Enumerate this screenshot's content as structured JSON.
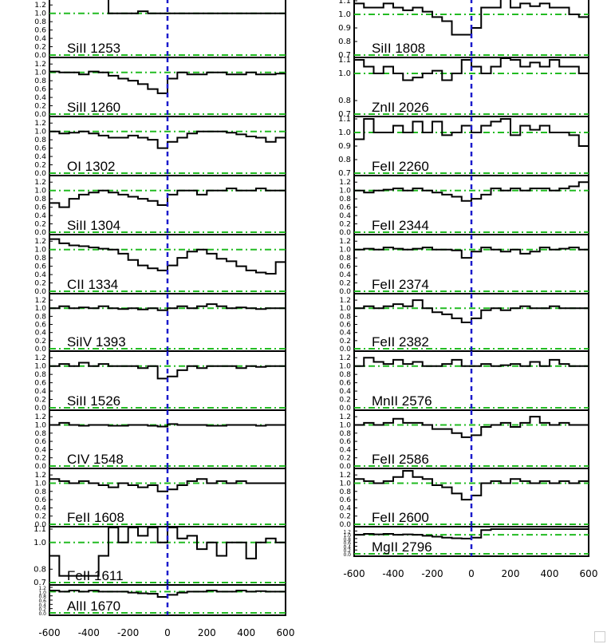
{
  "chart_data": [
    {
      "type": "line",
      "x_axis": {
        "ticks": [
          "-600",
          "-400",
          "-200",
          "0",
          "200",
          "400",
          "600"
        ],
        "range": [
          -600,
          600
        ]
      },
      "reference": {
        "velocity_zero": 0,
        "continuum_level": 1.0
      },
      "panels": [
        {
          "label": "SiII 1253",
          "ylim": [
            0.0,
            1.3
          ],
          "yticks": [
            "0.0",
            "0.2",
            "0.4",
            "0.6",
            "0.8",
            "1.0",
            "1.2"
          ],
          "flux": [
            1.4,
            1.4,
            1.4,
            1.4,
            1.4,
            1.4,
            1.0,
            1.0,
            1.0,
            1.05,
            1.0,
            1.0,
            1.0,
            1.0,
            1.0,
            1.0,
            1.0,
            1.0,
            1.0,
            1.0,
            1.0,
            1.0,
            1.0,
            1.0
          ]
        },
        {
          "label": "SiII 1260",
          "ylim": [
            0.0,
            1.3
          ],
          "yticks": [
            "0.0",
            "0.2",
            "0.4",
            "0.6",
            "0.8",
            "1.0",
            "1.2"
          ],
          "flux": [
            1.02,
            1.0,
            1.0,
            0.95,
            1.02,
            1.0,
            0.92,
            0.85,
            0.8,
            0.72,
            0.6,
            0.5,
            0.85,
            1.0,
            0.95,
            0.95,
            1.0,
            1.0,
            0.95,
            0.95,
            1.0,
            0.95,
            0.95,
            0.97
          ]
        },
        {
          "label": "OI 1302",
          "ylim": [
            0.0,
            1.3
          ],
          "yticks": [
            "0.0",
            "0.2",
            "0.4",
            "0.6",
            "0.8",
            "1.0",
            "1.2"
          ],
          "flux": [
            1.0,
            0.95,
            0.97,
            1.0,
            0.95,
            0.9,
            0.85,
            0.85,
            0.9,
            0.85,
            0.8,
            0.6,
            0.75,
            0.85,
            0.95,
            1.0,
            1.0,
            1.0,
            0.97,
            0.93,
            0.88,
            0.85,
            0.75,
            0.85
          ]
        },
        {
          "label": "SiII 1304",
          "ylim": [
            0.0,
            1.3
          ],
          "yticks": [
            "0.0",
            "0.2",
            "0.4",
            "0.6",
            "0.8",
            "1.0",
            "1.2"
          ],
          "flux": [
            0.7,
            0.6,
            0.8,
            0.9,
            0.95,
            1.0,
            0.95,
            0.9,
            0.85,
            0.8,
            0.75,
            0.65,
            0.9,
            1.0,
            1.0,
            0.9,
            1.0,
            1.0,
            1.05,
            1.0,
            1.0,
            1.05,
            1.0,
            1.0
          ]
        },
        {
          "label": "CII 1334",
          "ylim": [
            0.0,
            1.3
          ],
          "yticks": [
            "0.0",
            "0.2",
            "0.4",
            "0.6",
            "0.8",
            "1.0",
            "1.2"
          ],
          "flux": [
            1.25,
            1.15,
            1.1,
            1.08,
            1.05,
            1.02,
            1.0,
            0.9,
            0.75,
            0.62,
            0.55,
            0.5,
            0.62,
            0.8,
            0.95,
            1.0,
            0.9,
            0.78,
            0.72,
            0.6,
            0.5,
            0.45,
            0.42,
            0.7
          ]
        },
        {
          "label": "SiIV 1393",
          "ylim": [
            0.0,
            1.3
          ],
          "yticks": [
            "0.0",
            "0.2",
            "0.4",
            "0.6",
            "0.8",
            "1.0",
            "1.2"
          ],
          "flux": [
            1.0,
            1.05,
            1.0,
            1.02,
            1.0,
            1.05,
            1.0,
            0.98,
            1.0,
            0.97,
            1.0,
            0.95,
            1.0,
            1.05,
            1.0,
            1.05,
            1.1,
            1.05,
            1.0,
            1.02,
            1.0,
            0.98,
            1.0,
            1.0
          ]
        },
        {
          "label": "SiII 1526",
          "ylim": [
            0.0,
            1.3
          ],
          "yticks": [
            "0.0",
            "0.2",
            "0.4",
            "0.6",
            "0.8",
            "1.0",
            "1.2"
          ],
          "flux": [
            1.0,
            1.05,
            1.0,
            1.08,
            1.0,
            1.05,
            1.0,
            1.0,
            1.0,
            0.95,
            1.0,
            0.7,
            0.75,
            0.9,
            1.0,
            0.95,
            1.0,
            1.0,
            1.0,
            0.95,
            1.0,
            0.98,
            1.0,
            1.0
          ]
        },
        {
          "label": "CIV 1548",
          "ylim": [
            0.0,
            1.3
          ],
          "yticks": [
            "0.0",
            "0.2",
            "0.4",
            "0.6",
            "0.8",
            "1.0",
            "1.2"
          ],
          "flux": [
            1.0,
            1.05,
            1.0,
            0.98,
            1.0,
            1.0,
            0.98,
            0.98,
            1.0,
            1.0,
            0.98,
            0.96,
            1.02,
            1.0,
            1.0,
            1.0,
            0.98,
            0.98,
            1.0,
            1.0,
            1.0,
            0.98,
            1.0,
            1.0
          ]
        },
        {
          "label": "FeII 1608",
          "ylim": [
            0.0,
            1.3
          ],
          "yticks": [
            "0.0",
            "0.2",
            "0.4",
            "0.6",
            "0.8",
            "1.0",
            "1.2"
          ],
          "flux": [
            1.1,
            1.05,
            1.0,
            1.05,
            1.0,
            0.95,
            0.9,
            1.0,
            0.95,
            0.9,
            0.95,
            0.8,
            0.85,
            0.95,
            1.05,
            1.1,
            1.0,
            1.05,
            1.0,
            1.05,
            1.0,
            1.0,
            1.0,
            1.0
          ]
        },
        {
          "label": "FeII 1611",
          "ylim": [
            0.7,
            1.1
          ],
          "yticks": [
            "0.7",
            "0.8",
            "1.0",
            "1.1"
          ],
          "flux": [
            0.9,
            0.75,
            0.75,
            0.75,
            0.75,
            0.9,
            1.14,
            1.0,
            1.14,
            1.05,
            1.14,
            1.0,
            1.14,
            1.03,
            1.05,
            0.95,
            1.0,
            0.9,
            1.0,
            1.0,
            0.88,
            1.0,
            1.03,
            1.0
          ]
        },
        {
          "label": "AlII 1670",
          "ylim": [
            0.0,
            1.2
          ],
          "yticks": [
            "0.0",
            "0.2",
            "0.4",
            "0.6",
            "0.8",
            "1.0",
            "1.2"
          ],
          "flux": [
            1.05,
            1.0,
            1.05,
            1.0,
            1.05,
            1.0,
            1.0,
            1.0,
            0.95,
            0.92,
            0.9,
            0.75,
            0.85,
            0.95,
            1.0,
            1.0,
            1.05,
            1.0,
            1.0,
            1.05,
            1.0,
            1.02,
            1.0,
            1.0
          ]
        },
        {
          "label": "SiII 1808",
          "ylim": [
            0.7,
            1.1
          ],
          "yticks": [
            "0.7",
            "0.8",
            "0.9",
            "1.0",
            "1.1"
          ],
          "flux": [
            1.08,
            1.05,
            1.05,
            1.08,
            1.05,
            1.03,
            1.05,
            1.02,
            0.98,
            0.95,
            0.85,
            0.85,
            0.9,
            1.05,
            1.05,
            1.15,
            1.05,
            1.08,
            1.06,
            1.08,
            1.05,
            1.05,
            1.0,
            0.98
          ]
        },
        {
          "label": "ZnII 2026",
          "ylim": [
            0.7,
            1.1
          ],
          "yticks": [
            "0.7",
            "0.8",
            "1.0",
            "1.1"
          ],
          "flux": [
            1.1,
            1.05,
            1.0,
            1.05,
            1.0,
            0.95,
            0.97,
            1.0,
            1.02,
            0.95,
            1.0,
            1.1,
            1.05,
            1.0,
            1.05,
            1.12,
            1.1,
            1.05,
            1.08,
            1.05,
            1.1,
            1.05,
            1.05,
            1.0
          ]
        },
        {
          "label": "FeII 2260",
          "ylim": [
            0.7,
            1.1
          ],
          "yticks": [
            "0.7",
            "0.8",
            "0.9",
            "1.0",
            "1.1"
          ],
          "flux": [
            0.95,
            1.1,
            1.0,
            1.0,
            1.05,
            1.0,
            1.08,
            1.0,
            1.08,
            0.98,
            1.0,
            1.05,
            1.0,
            1.05,
            1.08,
            1.1,
            0.98,
            1.05,
            1.02,
            1.05,
            1.0,
            1.0,
            0.98,
            0.9
          ]
        },
        {
          "label": "FeII 2344",
          "ylim": [
            0.0,
            1.3
          ],
          "yticks": [
            "0.0",
            "0.2",
            "0.4",
            "0.6",
            "0.8",
            "1.0",
            "1.2"
          ],
          "flux": [
            1.0,
            0.95,
            1.0,
            1.02,
            1.05,
            1.0,
            1.05,
            1.0,
            0.95,
            0.9,
            0.85,
            0.75,
            0.8,
            0.9,
            1.05,
            1.0,
            1.05,
            1.0,
            1.05,
            1.05,
            1.0,
            1.05,
            1.1,
            1.2
          ]
        },
        {
          "label": "FeII 2374",
          "ylim": [
            0.0,
            1.3
          ],
          "yticks": [
            "0.0",
            "0.2",
            "0.4",
            "0.6",
            "0.8",
            "1.0",
            "1.2"
          ],
          "flux": [
            1.0,
            1.02,
            1.0,
            1.05,
            1.02,
            1.0,
            1.02,
            1.05,
            1.0,
            1.0,
            0.98,
            0.8,
            0.95,
            1.05,
            1.0,
            0.95,
            1.0,
            0.9,
            0.95,
            1.05,
            1.0,
            1.02,
            1.05,
            1.0
          ]
        },
        {
          "label": "FeII 2382",
          "ylim": [
            0.0,
            1.3
          ],
          "yticks": [
            "0.0",
            "0.2",
            "0.4",
            "0.6",
            "0.8",
            "1.0",
            "1.2"
          ],
          "flux": [
            1.0,
            1.05,
            1.0,
            1.05,
            1.1,
            1.05,
            1.2,
            1.0,
            0.9,
            0.85,
            0.75,
            0.65,
            0.75,
            0.95,
            1.0,
            0.95,
            1.0,
            1.05,
            1.0,
            1.0,
            1.05,
            1.0,
            1.0,
            1.0
          ]
        },
        {
          "label": "MnII 2576",
          "ylim": [
            0.0,
            1.3
          ],
          "yticks": [
            "0.0",
            "0.2",
            "0.4",
            "0.6",
            "0.8",
            "1.0",
            "1.2"
          ],
          "flux": [
            1.0,
            1.2,
            1.1,
            1.05,
            1.15,
            1.05,
            1.1,
            1.0,
            1.0,
            1.05,
            1.15,
            1.0,
            1.0,
            1.05,
            1.0,
            1.02,
            1.05,
            1.0,
            1.1,
            1.0,
            1.15,
            1.05,
            1.0,
            1.0
          ]
        },
        {
          "label": "FeII 2586",
          "ylim": [
            0.0,
            1.3
          ],
          "yticks": [
            "0.0",
            "0.2",
            "0.4",
            "0.6",
            "0.8",
            "1.0",
            "1.2"
          ],
          "flux": [
            1.0,
            1.05,
            1.0,
            1.05,
            1.15,
            1.05,
            1.05,
            1.0,
            0.9,
            0.9,
            0.8,
            0.7,
            0.75,
            0.95,
            1.0,
            1.05,
            0.95,
            1.05,
            1.2,
            1.05,
            1.0,
            1.05,
            1.0,
            1.0
          ]
        },
        {
          "label": "FeII 2600",
          "ylim": [
            0.0,
            1.3
          ],
          "yticks": [
            "0.0",
            "0.2",
            "0.4",
            "0.6",
            "0.8",
            "1.0",
            "1.2"
          ],
          "flux": [
            1.1,
            1.05,
            1.0,
            1.05,
            1.15,
            1.3,
            1.15,
            1.1,
            0.95,
            0.9,
            0.75,
            0.6,
            0.7,
            1.0,
            1.05,
            1.0,
            1.1,
            1.05,
            1.0,
            1.05,
            1.0,
            1.05,
            1.0,
            1.05
          ]
        },
        {
          "label": "MgII 2796",
          "ylim": [
            0.0,
            1.3
          ],
          "yticks": [
            "0.0",
            "0.2",
            "0.4",
            "0.6",
            "0.8",
            "1.0",
            "1.2"
          ],
          "flux": [
            1.0,
            1.05,
            1.02,
            1.05,
            1.0,
            1.02,
            1.0,
            0.95,
            0.9,
            0.85,
            0.82,
            0.8,
            0.85,
            1.25,
            1.3,
            1.3,
            1.3,
            1.3,
            1.3,
            1.3,
            1.3,
            1.3,
            1.3,
            1.3
          ]
        }
      ]
    }
  ]
}
